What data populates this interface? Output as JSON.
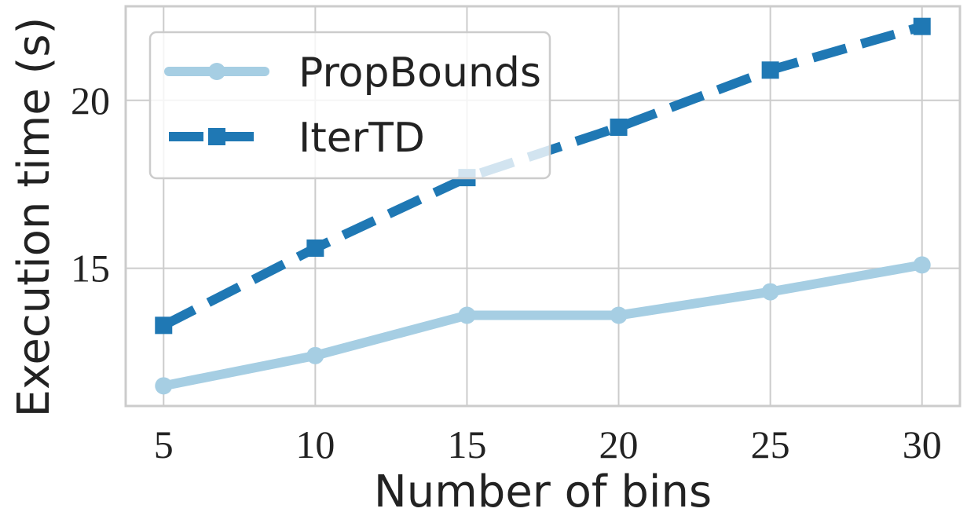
{
  "chart_data": {
    "type": "line",
    "title": "",
    "xlabel": "Number of bins",
    "ylabel": "Execution time (s)",
    "x": [
      5,
      10,
      15,
      20,
      25,
      30
    ],
    "xlim": [
      3.75,
      31.25
    ],
    "ylim": [
      10.9,
      22.8
    ],
    "x_ticks": [
      5,
      10,
      15,
      20,
      25,
      30
    ],
    "y_ticks": [
      15,
      20
    ],
    "grid": true,
    "legend_position": "top-left",
    "series": [
      {
        "name": "PropBounds",
        "values": [
          11.5,
          12.4,
          13.6,
          13.6,
          14.3,
          15.1
        ],
        "color": "#a6cee3",
        "line_style": "solid",
        "marker": "circle"
      },
      {
        "name": "IterTD",
        "values": [
          13.3,
          15.6,
          17.7,
          19.2,
          20.9,
          22.2
        ],
        "color": "#1f78b4",
        "line_style": "dashed",
        "marker": "square"
      }
    ]
  },
  "colors": {
    "grid": "#cccccc",
    "axis_frame": "#cccccc",
    "legend_border": "#cccccc",
    "text": "#222222"
  }
}
